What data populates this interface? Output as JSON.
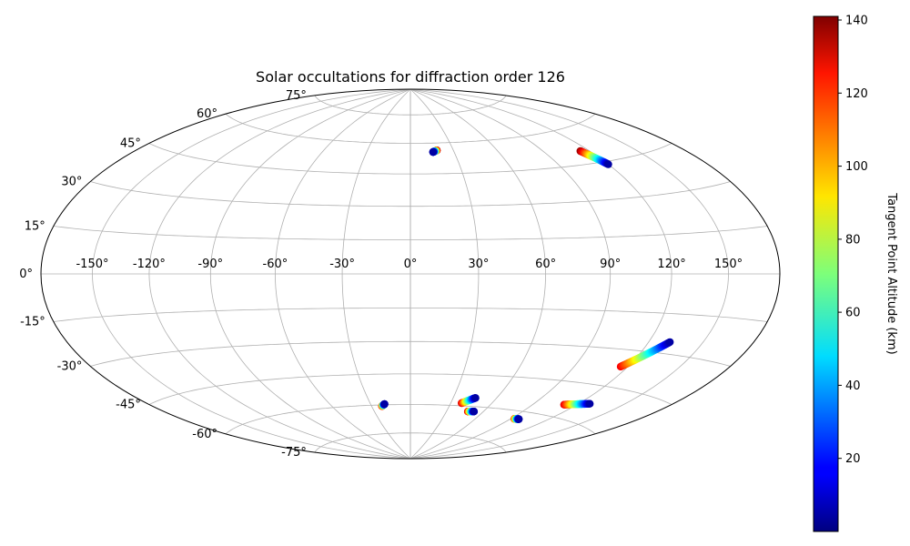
{
  "chart_data": {
    "type": "scatter",
    "projection": "hammer",
    "title": "Solar occultations for diffraction order 126",
    "grid": true,
    "lon_ticks": [
      -150,
      -120,
      -90,
      -60,
      -30,
      0,
      30,
      60,
      90,
      120,
      150
    ],
    "lat_ticks": [
      -75,
      -60,
      -45,
      -30,
      -15,
      0,
      15,
      30,
      45,
      60,
      75
    ],
    "lon_tick_labels": [
      "-150°",
      "-120°",
      "-90°",
      "-60°",
      "-30°",
      "0°",
      "30°",
      "60°",
      "90°",
      "120°",
      "150°"
    ],
    "lat_tick_labels": [
      "-75°",
      "-60°",
      "-45°",
      "-30°",
      "-15°",
      "0°",
      "15°",
      "30°",
      "45°",
      "60°",
      "75°"
    ],
    "colorbar": {
      "label": "Tangent Point Altitude (km)",
      "colormap": "jet",
      "range": [
        0,
        141
      ],
      "ticks": [
        20,
        40,
        60,
        80,
        100,
        120,
        140
      ],
      "tick_labels": [
        "20",
        "40",
        "60",
        "80",
        "100",
        "120",
        "140"
      ]
    },
    "tracks": [
      {
        "lon_start": 18.5,
        "lat_start": 56.3,
        "alt_start": 138,
        "lon_end": 15.5,
        "lat_end": 55.5,
        "alt_end": 5
      },
      {
        "lon_start": 114.0,
        "lat_start": 50.5,
        "alt_start": 138,
        "lon_end": 120.0,
        "lat_end": 43.8,
        "alt_end": 5
      },
      {
        "lon_start": 116.0,
        "lat_start": -36.8,
        "alt_start": 125,
        "lon_end": 131.5,
        "lat_end": -25.6,
        "alt_end": 5
      },
      {
        "lon_start": 111.5,
        "lat_start": -54.6,
        "alt_start": 128,
        "lon_end": 127.5,
        "lat_end": -52.4,
        "alt_end": 5
      },
      {
        "lon_start": 38.0,
        "lat_start": -58.7,
        "alt_start": 130,
        "lon_end": 45.5,
        "lat_end": -55.8,
        "alt_end": 5
      },
      {
        "lon_start": 52.5,
        "lat_start": -62.4,
        "alt_start": 5,
        "lon_end": 47.5,
        "lat_end": -62.6,
        "alt_end": 130
      },
      {
        "lon_start": -22.0,
        "lat_start": -60.6,
        "alt_start": 128,
        "lon_end": -19.5,
        "lat_end": -59.6,
        "alt_end": 5
      },
      {
        "lon_start": 93.0,
        "lat_start": -63.7,
        "alt_start": 120,
        "lon_end": 97.0,
        "lat_end": -63.5,
        "alt_end": 5
      }
    ]
  }
}
